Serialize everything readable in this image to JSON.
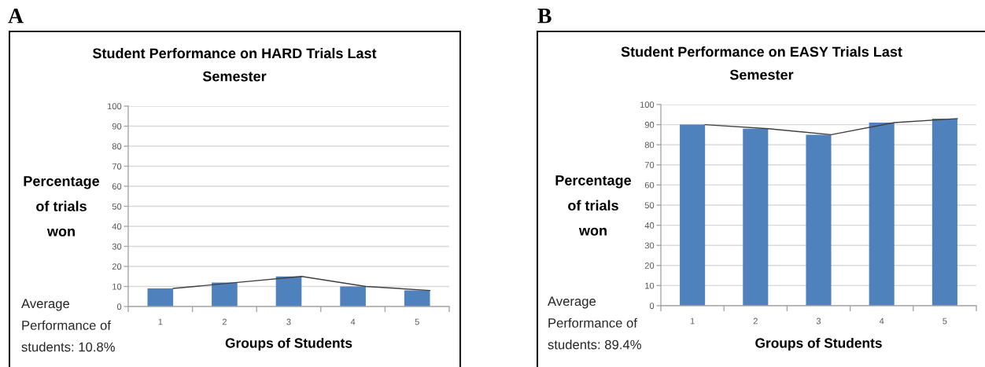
{
  "chart_data": [
    {
      "type": "bar",
      "title": "Student Performance on HARD Trials Last\nSemester",
      "xlabel": "Groups of Students",
      "ylabel": "Percentage\nof trials\nwon",
      "categories": [
        "1",
        "2",
        "3",
        "4",
        "5"
      ],
      "series": [
        {
          "color": "#4f81bd",
          "values": [
            9,
            12,
            15,
            10,
            8
          ]
        },
        {
          "type": "line",
          "color": "#404040",
          "values": [
            9,
            12,
            15,
            10,
            8
          ]
        }
      ],
      "ylim": [
        0,
        100
      ],
      "yticks": [
        0,
        10,
        20,
        30,
        40,
        50,
        60,
        70,
        80,
        90,
        100
      ],
      "grid": "y",
      "annotations": [
        "A",
        "Average\nPerformance of\nstudents: 10.8%"
      ]
    },
    {
      "type": "bar",
      "title": "Student Performance on EASY Trials Last\nSemester",
      "xlabel": "Groups of Students",
      "ylabel": "Percentage\nof trials\nwon",
      "categories": [
        "1",
        "2",
        "3",
        "4",
        "5"
      ],
      "series": [
        {
          "color": "#4f81bd",
          "values": [
            90,
            88,
            85,
            91,
            93
          ]
        },
        {
          "type": "line",
          "color": "#404040",
          "values": [
            90,
            88,
            85,
            91,
            93
          ]
        }
      ],
      "ylim": [
        0,
        100
      ],
      "yticks": [
        0,
        10,
        20,
        30,
        40,
        50,
        60,
        70,
        80,
        90,
        100
      ],
      "grid": "y",
      "annotations": [
        "B",
        "Average\nPerformance of\nstudents: 89.4%"
      ]
    }
  ]
}
